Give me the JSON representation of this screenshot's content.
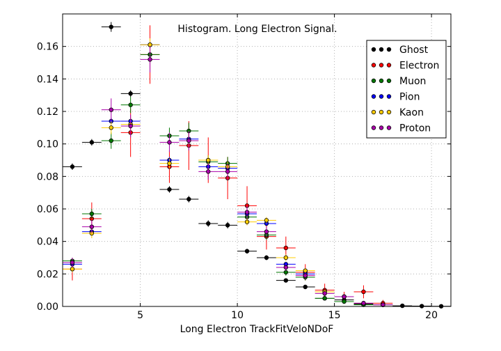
{
  "chart_data": {
    "type": "scatter",
    "title": "Histogram. Long Electron Signal.",
    "xlabel": "Long Electron TrackFitVeloNDoF",
    "ylabel": "",
    "xlim": [
      1,
      21
    ],
    "ylim": [
      0,
      0.18
    ],
    "xticks": [
      5,
      10,
      15,
      20
    ],
    "xtick_labels": [
      "5",
      "10",
      "15",
      "20"
    ],
    "yticks": [
      0.0,
      0.02,
      0.04,
      0.06,
      0.08,
      0.1,
      0.12,
      0.14,
      0.16
    ],
    "ytick_labels": [
      "0.00",
      "0.02",
      "0.04",
      "0.06",
      "0.08",
      "0.10",
      "0.12",
      "0.14",
      "0.16"
    ],
    "grid": true,
    "legend_position": "top-right",
    "x_bin_halfwidth": 0.5,
    "series": [
      {
        "name": "Ghost",
        "color": "#000000",
        "points": [
          [
            1.5,
            0.086,
            0.002
          ],
          [
            2.5,
            0.101,
            0.002
          ],
          [
            3.5,
            0.172,
            0.003
          ],
          [
            4.5,
            0.131,
            0.002
          ],
          [
            5.5,
            0.161,
            0.002
          ],
          [
            6.5,
            0.072,
            0.002
          ],
          [
            7.5,
            0.066,
            0.002
          ],
          [
            8.5,
            0.051,
            0.002
          ],
          [
            9.5,
            0.05,
            0.002
          ],
          [
            10.5,
            0.034,
            0.0015
          ],
          [
            11.5,
            0.03,
            0.0015
          ],
          [
            12.5,
            0.016,
            0.001
          ],
          [
            13.5,
            0.012,
            0.001
          ],
          [
            14.5,
            0.005,
            0.0007
          ],
          [
            15.5,
            0.004,
            0.0006
          ],
          [
            16.5,
            0.0015,
            0.0004
          ],
          [
            17.5,
            0.001,
            0.0003
          ],
          [
            18.5,
            0.0004,
            0.0002
          ],
          [
            19.5,
            0.0002,
            0.0001
          ],
          [
            20.5,
            0.0001,
            0.0001
          ]
        ]
      },
      {
        "name": "Electron",
        "color": "#ff0000",
        "points": [
          [
            1.5,
            0.023,
            0.007
          ],
          [
            2.5,
            0.054,
            0.01
          ],
          [
            4.5,
            0.107,
            0.015
          ],
          [
            5.5,
            0.155,
            0.018
          ],
          [
            6.5,
            0.086,
            0.01
          ],
          [
            7.5,
            0.099,
            0.015
          ],
          [
            8.5,
            0.09,
            0.014
          ],
          [
            9.5,
            0.079,
            0.013
          ],
          [
            10.5,
            0.062,
            0.012
          ],
          [
            11.5,
            0.043,
            0.008
          ],
          [
            12.5,
            0.036,
            0.007
          ],
          [
            13.5,
            0.021,
            0.005
          ],
          [
            14.5,
            0.01,
            0.004
          ],
          [
            15.5,
            0.006,
            0.003
          ],
          [
            16.5,
            0.009,
            0.004
          ],
          [
            17.5,
            0.002,
            0.002
          ]
        ]
      },
      {
        "name": "Muon",
        "color": "#007700",
        "points": [
          [
            1.5,
            0.028,
            0.002
          ],
          [
            2.5,
            0.057,
            0.003
          ],
          [
            3.5,
            0.102,
            0.005
          ],
          [
            4.5,
            0.124,
            0.005
          ],
          [
            5.5,
            0.155,
            0.005
          ],
          [
            6.5,
            0.105,
            0.005
          ],
          [
            7.5,
            0.108,
            0.005
          ],
          [
            8.5,
            0.089,
            0.004
          ],
          [
            9.5,
            0.088,
            0.004
          ],
          [
            10.5,
            0.055,
            0.003
          ],
          [
            11.5,
            0.044,
            0.003
          ],
          [
            12.5,
            0.021,
            0.002
          ],
          [
            13.5,
            0.018,
            0.002
          ],
          [
            14.5,
            0.005,
            0.001
          ],
          [
            15.5,
            0.003,
            0.001
          ],
          [
            16.5,
            0.001,
            0.0005
          ]
        ]
      },
      {
        "name": "Pion",
        "color": "#0000ff",
        "points": [
          [
            1.5,
            0.026,
            0.001
          ],
          [
            2.5,
            0.046,
            0.001
          ],
          [
            3.5,
            0.114,
            0.002
          ],
          [
            4.5,
            0.114,
            0.002
          ],
          [
            5.5,
            0.161,
            0.002
          ],
          [
            6.5,
            0.09,
            0.002
          ],
          [
            7.5,
            0.103,
            0.002
          ],
          [
            8.5,
            0.086,
            0.002
          ],
          [
            9.5,
            0.085,
            0.002
          ],
          [
            10.5,
            0.057,
            0.0015
          ],
          [
            11.5,
            0.051,
            0.0015
          ],
          [
            12.5,
            0.026,
            0.001
          ],
          [
            13.5,
            0.02,
            0.001
          ],
          [
            14.5,
            0.009,
            0.0007
          ],
          [
            15.5,
            0.006,
            0.0006
          ],
          [
            16.5,
            0.002,
            0.0004
          ],
          [
            17.5,
            0.001,
            0.0003
          ]
        ]
      },
      {
        "name": "Kaon",
        "color": "#ffcc00",
        "points": [
          [
            1.5,
            0.023,
            0.002
          ],
          [
            2.5,
            0.045,
            0.003
          ],
          [
            3.5,
            0.11,
            0.004
          ],
          [
            4.5,
            0.112,
            0.004
          ],
          [
            5.5,
            0.161,
            0.004
          ],
          [
            6.5,
            0.088,
            0.003
          ],
          [
            7.5,
            0.102,
            0.004
          ],
          [
            8.5,
            0.09,
            0.003
          ],
          [
            9.5,
            0.086,
            0.003
          ],
          [
            10.5,
            0.052,
            0.002
          ],
          [
            11.5,
            0.053,
            0.002
          ],
          [
            12.5,
            0.03,
            0.002
          ],
          [
            13.5,
            0.022,
            0.0015
          ],
          [
            14.5,
            0.009,
            0.001
          ],
          [
            15.5,
            0.006,
            0.001
          ],
          [
            16.5,
            0.002,
            0.0005
          ],
          [
            17.5,
            0.001,
            0.0004
          ]
        ]
      },
      {
        "name": "Proton",
        "color": "#aa00aa",
        "points": [
          [
            1.5,
            0.027,
            0.003
          ],
          [
            2.5,
            0.049,
            0.004
          ],
          [
            3.5,
            0.121,
            0.007
          ],
          [
            4.5,
            0.111,
            0.007
          ],
          [
            5.5,
            0.152,
            0.008
          ],
          [
            6.5,
            0.101,
            0.006
          ],
          [
            7.5,
            0.102,
            0.006
          ],
          [
            8.5,
            0.083,
            0.005
          ],
          [
            9.5,
            0.083,
            0.005
          ],
          [
            10.5,
            0.058,
            0.004
          ],
          [
            11.5,
            0.046,
            0.003
          ],
          [
            12.5,
            0.024,
            0.002
          ],
          [
            13.5,
            0.019,
            0.002
          ],
          [
            14.5,
            0.008,
            0.0015
          ],
          [
            15.5,
            0.006,
            0.0012
          ],
          [
            16.5,
            0.002,
            0.0008
          ],
          [
            17.5,
            0.001,
            0.0005
          ]
        ]
      }
    ]
  }
}
